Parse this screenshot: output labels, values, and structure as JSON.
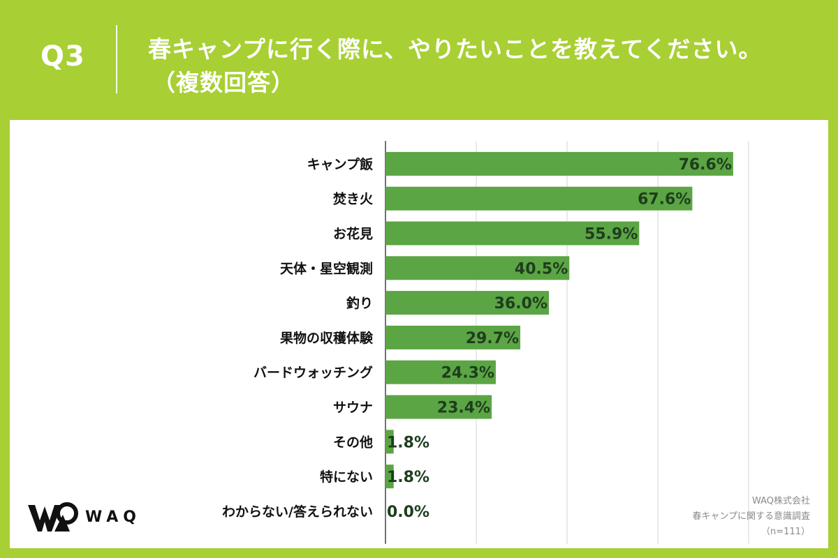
{
  "header": {
    "question": "Q3",
    "title_line1": "春キャンプに行く際に、やりたいことを教えてください。",
    "title_line2": "（複数回答）"
  },
  "logo": {
    "text": "WAQ"
  },
  "footer": {
    "company": "WAQ株式会社",
    "survey": "春キャンプに関する意識調査",
    "sample": "（n=111）"
  },
  "colors": {
    "background": "#a8cf34",
    "bar": "#5ba544",
    "value_text": "#1e3d1e"
  },
  "chart_data": {
    "type": "bar",
    "orientation": "horizontal",
    "title": "春キャンプに行く際に、やりたいことを教えてください。（複数回答）",
    "categories": [
      "キャンプ飯",
      "焚き火",
      "お花見",
      "天体・星空観測",
      "釣り",
      "果物の収穫体験",
      "バードウォッチング",
      "サウナ",
      "その他",
      "特にない",
      "わからない/答えられない"
    ],
    "values": [
      76.6,
      67.6,
      55.9,
      40.5,
      36.0,
      29.7,
      24.3,
      23.4,
      1.8,
      1.8,
      0.0
    ],
    "value_labels": [
      "76.6%",
      "67.6%",
      "55.9%",
      "40.5%",
      "36.0%",
      "29.7%",
      "24.3%",
      "23.4%",
      "1.8%",
      "1.8%",
      "0.0%"
    ],
    "xlim": [
      0,
      80
    ],
    "grid": true,
    "xlabel": "",
    "ylabel": ""
  }
}
